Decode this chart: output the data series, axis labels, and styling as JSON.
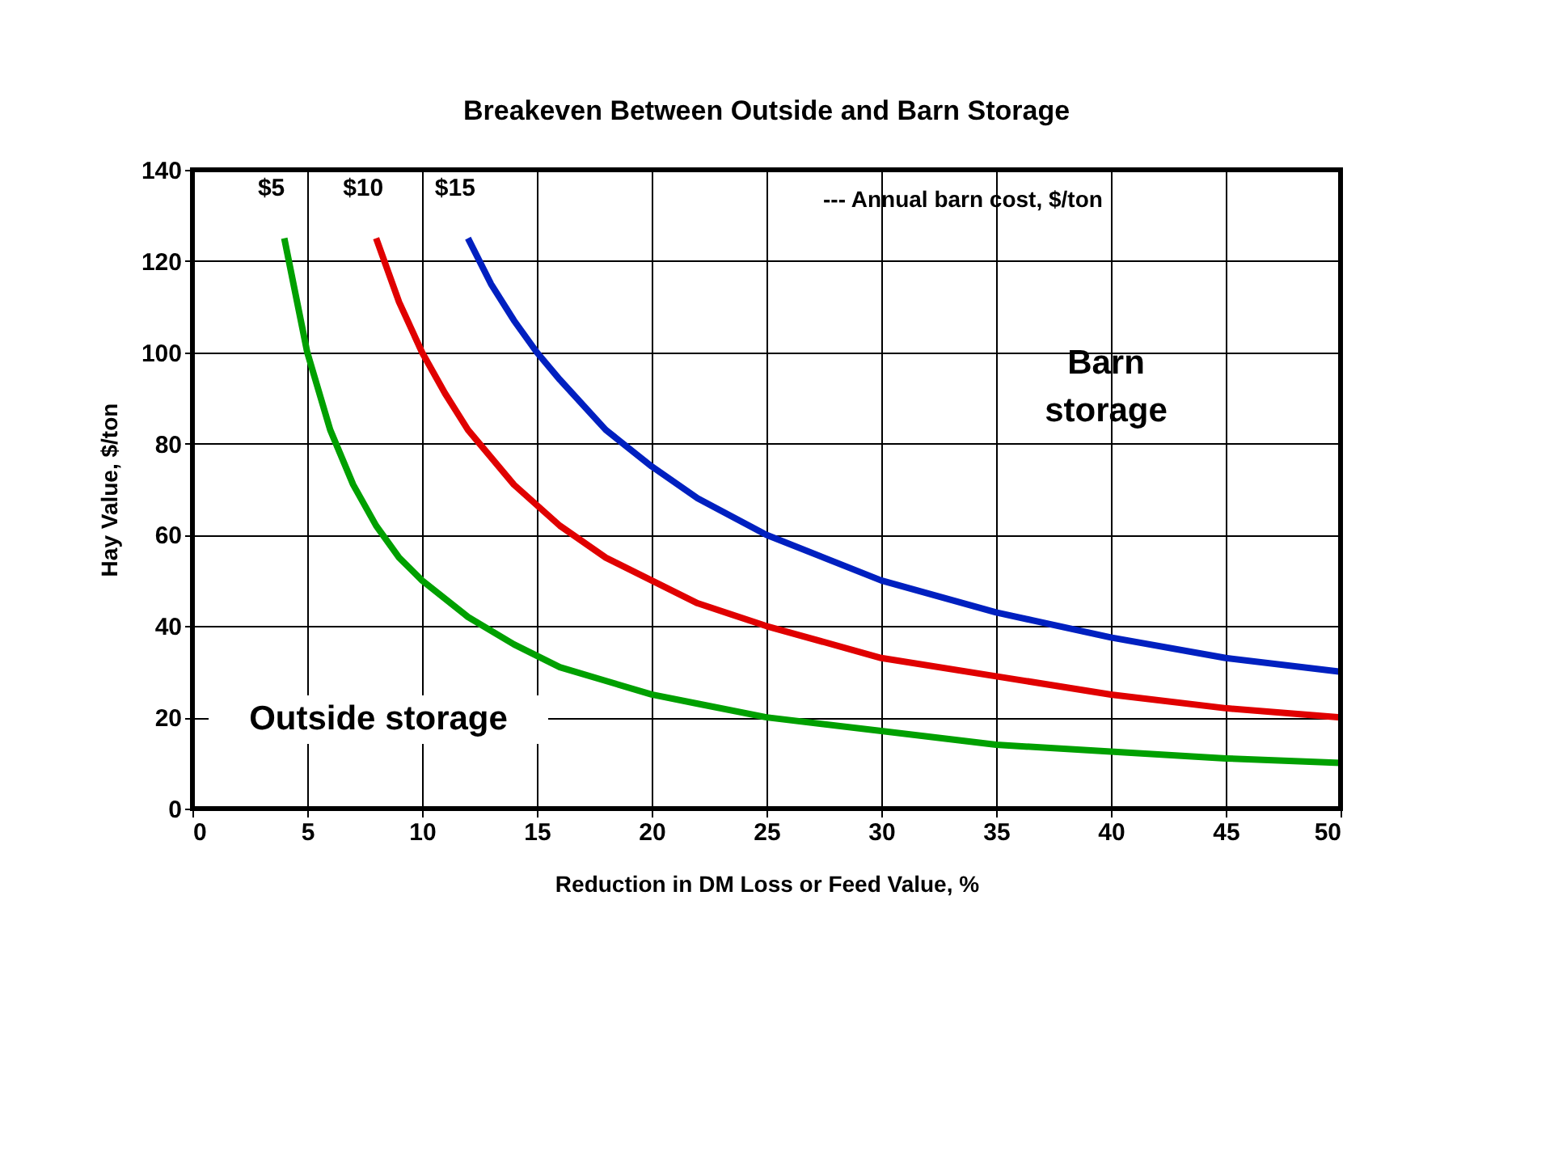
{
  "chart_data": {
    "type": "line",
    "title": "Breakeven Between Outside and Barn Storage",
    "xlabel": "Reduction in DM Loss or Feed Value, %",
    "ylabel": "Hay Value, $/ton",
    "xlim": [
      0,
      50
    ],
    "xticks": [
      0,
      5,
      10,
      15,
      20,
      25,
      30,
      35,
      40,
      45,
      50
    ],
    "ylim": [
      0,
      140
    ],
    "yticks": [
      0,
      20,
      40,
      60,
      80,
      100,
      120,
      140
    ],
    "grid": true,
    "legend": false,
    "marker": "none",
    "line_style": "solid",
    "series": [
      {
        "name": "$5",
        "color": "#00a000",
        "x": [
          4,
          5,
          6,
          7,
          8,
          9,
          10,
          12,
          14,
          16,
          18,
          20,
          22,
          25,
          30,
          35,
          40,
          45,
          50
        ],
        "values": [
          125,
          100,
          83,
          71,
          62,
          55,
          50,
          42,
          36,
          31,
          28,
          25,
          23,
          20,
          17,
          14,
          12.5,
          11,
          10
        ]
      },
      {
        "name": "$10",
        "color": "#e00000",
        "x": [
          8,
          9,
          10,
          11,
          12,
          14,
          16,
          18,
          20,
          22,
          25,
          30,
          35,
          40,
          45,
          50
        ],
        "values": [
          125,
          111,
          100,
          91,
          83,
          71,
          62,
          55,
          50,
          45,
          40,
          33,
          29,
          25,
          22,
          20
        ]
      },
      {
        "name": "$15",
        "color": "#0020c0",
        "x": [
          12,
          13,
          14,
          15,
          16,
          18,
          20,
          22,
          25,
          30,
          35,
          40,
          45,
          50
        ],
        "values": [
          125,
          115,
          107,
          100,
          94,
          83,
          75,
          68,
          60,
          50,
          43,
          37.5,
          33,
          30
        ]
      }
    ],
    "annotations": [
      "--- Annual barn cost, $/ton",
      "Barn storage",
      "Outside storage"
    ]
  }
}
